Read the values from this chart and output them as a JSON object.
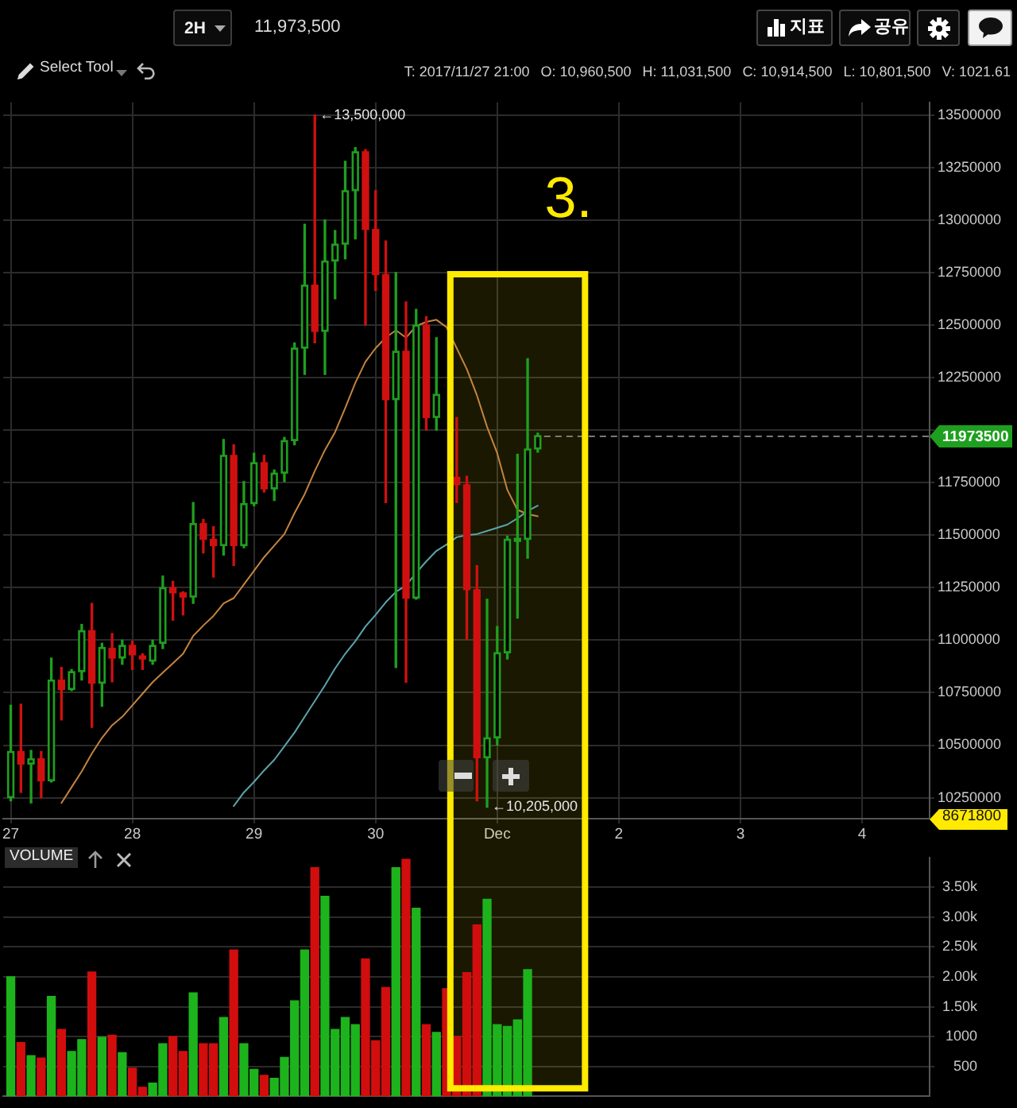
{
  "chart_data": [
    {
      "type": "candlestick",
      "x": [
        "2017-11-27T00:00",
        "2017-11-27T02:00",
        "2017-11-27T04:00",
        "2017-11-27T06:00",
        "2017-11-27T08:00",
        "2017-11-27T10:00",
        "2017-11-27T12:00",
        "2017-11-27T14:00",
        "2017-11-27T16:00",
        "2017-11-27T18:00",
        "2017-11-27T20:00",
        "2017-11-27T22:00",
        "2017-11-28T00:00",
        "2017-11-28T02:00",
        "2017-11-28T04:00",
        "2017-11-28T06:00",
        "2017-11-28T08:00",
        "2017-11-28T10:00",
        "2017-11-28T12:00",
        "2017-11-28T14:00",
        "2017-11-28T16:00",
        "2017-11-28T18:00",
        "2017-11-28T20:00",
        "2017-11-28T22:00",
        "2017-11-29T00:00",
        "2017-11-29T02:00",
        "2017-11-29T04:00",
        "2017-11-29T06:00",
        "2017-11-29T08:00",
        "2017-11-29T10:00",
        "2017-11-29T12:00",
        "2017-11-29T14:00",
        "2017-11-29T16:00",
        "2017-11-29T18:00",
        "2017-11-29T20:00",
        "2017-11-29T22:00",
        "2017-11-30T00:00",
        "2017-11-30T02:00",
        "2017-11-30T04:00",
        "2017-11-30T06:00",
        "2017-11-30T08:00",
        "2017-11-30T10:00",
        "2017-11-30T12:00",
        "2017-11-30T14:00",
        "2017-11-30T16:00",
        "2017-11-30T18:00",
        "2017-11-30T20:00",
        "2017-11-30T22:00",
        "2017-12-01T00:00",
        "2017-12-01T02:00",
        "2017-12-01T04:00",
        "2017-12-01T06:00",
        "2017-12-01T08:00"
      ],
      "ohlc": [
        [
          10250000,
          10690000,
          10235000,
          10470000
        ],
        [
          10470000,
          10695000,
          10275000,
          10410000
        ],
        [
          10410000,
          10475000,
          10225000,
          10435000
        ],
        [
          10435000,
          10470000,
          10250000,
          10330000
        ],
        [
          10330000,
          10915000,
          10325000,
          10810000
        ],
        [
          10810000,
          10870000,
          10620000,
          10765000
        ],
        [
          10765000,
          10860000,
          10760000,
          10850000
        ],
        [
          10850000,
          11075000,
          10810000,
          11045000
        ],
        [
          11045000,
          11175000,
          10585000,
          10795000
        ],
        [
          10795000,
          10985000,
          10685000,
          10965000
        ],
        [
          10960500,
          11031500,
          10801500,
          10914500
        ],
        [
          10915000,
          11000000,
          10885000,
          10975000
        ],
        [
          10975000,
          10995000,
          10860000,
          10930000
        ],
        [
          10925000,
          10935000,
          10860000,
          10910000
        ],
        [
          10900000,
          11000000,
          10885000,
          10975000
        ],
        [
          10985000,
          11305000,
          10960000,
          11250000
        ],
        [
          11250000,
          11280000,
          11095000,
          11225000
        ],
        [
          11225000,
          11230000,
          11120000,
          11205000
        ],
        [
          11205000,
          11655000,
          11175000,
          11555000
        ],
        [
          11555000,
          11575000,
          11415000,
          11480000
        ],
        [
          11480000,
          11540000,
          11300000,
          11450000
        ],
        [
          11450000,
          11955000,
          11405000,
          11880000
        ],
        [
          11880000,
          11930000,
          11355000,
          11450000
        ],
        [
          11450000,
          11755000,
          11440000,
          11650000
        ],
        [
          11650000,
          11890000,
          11640000,
          11845000
        ],
        [
          11845000,
          11880000,
          11705000,
          11720000
        ],
        [
          11720000,
          11810000,
          11665000,
          11795000
        ],
        [
          11795000,
          11965000,
          11755000,
          11950000
        ],
        [
          11950000,
          12415000,
          11930000,
          12390000
        ],
        [
          12390000,
          12980000,
          12265000,
          12690000
        ],
        [
          12690000,
          13500000,
          12415000,
          12470000
        ],
        [
          12470000,
          13000000,
          12265000,
          12805000
        ],
        [
          12805000,
          12950000,
          12625000,
          12885000
        ],
        [
          12885000,
          13280000,
          12815000,
          13140000
        ],
        [
          13140000,
          13345000,
          12910000,
          13325000
        ],
        [
          13325000,
          13335000,
          12500000,
          12955000
        ],
        [
          12955000,
          13140000,
          12665000,
          12740000
        ],
        [
          12740000,
          12900000,
          11655000,
          12145000
        ],
        [
          12145000,
          12750000,
          10870000,
          12375000
        ],
        [
          12375000,
          12610000,
          10800000,
          11200000
        ],
        [
          11200000,
          12575000,
          11195000,
          12500000
        ],
        [
          12500000,
          12540000,
          12000000,
          12060000
        ],
        [
          12060000,
          12440000,
          12000000,
          12170000
        ],
        null,
        [
          11775000,
          12060000,
          11655000,
          11740000
        ],
        [
          11740000,
          11780000,
          11005000,
          11240000
        ],
        [
          11240000,
          11355000,
          10235000,
          10440000
        ],
        [
          10440000,
          11195000,
          10205000,
          10535000
        ],
        [
          10535000,
          11065000,
          10500000,
          10940000
        ],
        [
          10940000,
          11495000,
          10910000,
          11480000
        ],
        [
          11470000,
          11885000,
          11105000,
          11485000
        ],
        [
          11480000,
          12340000,
          11390000,
          11910000
        ],
        [
          11910000,
          11985000,
          11895000,
          11973500
        ]
      ],
      "colors": [
        "#1f9f1f",
        "#d01010",
        "#1f9f1f",
        "#d01010",
        "#1f9f1f",
        "#d01010",
        "#1f9f1f",
        "#1f9f1f",
        "#d01010",
        "#1f9f1f",
        "#d01010",
        "#1f9f1f",
        "#d01010",
        "#d01010",
        "#1f9f1f",
        "#1f9f1f",
        "#d01010",
        "#d01010",
        "#1f9f1f",
        "#d01010",
        "#d01010",
        "#1f9f1f",
        "#d01010",
        "#1f9f1f",
        "#1f9f1f",
        "#d01010",
        "#1f9f1f",
        "#1f9f1f",
        "#1f9f1f",
        "#1f9f1f",
        "#d01010",
        "#1f9f1f",
        "#1f9f1f",
        "#1f9f1f",
        "#1f9f1f",
        "#d01010",
        "#d01010",
        "#d01010",
        "#1f9f1f",
        "#d01010",
        "#1f9f1f",
        "#d01010",
        "#1f9f1f",
        null,
        "#d01010",
        "#d01010",
        "#d01010",
        "#1f9f1f",
        "#1f9f1f",
        "#1f9f1f",
        "#1f9f1f",
        "#1f9f1f",
        "#1f9f1f"
      ],
      "series": [
        {
          "type": "line",
          "color": "#c4843f",
          "values": [
            null,
            null,
            null,
            null,
            null,
            10225000,
            10300000,
            10375000,
            10460000,
            10535000,
            10595000,
            10635000,
            10690000,
            10745000,
            10800000,
            10845000,
            10890000,
            10935000,
            11020000,
            11070000,
            11115000,
            11175000,
            11200000,
            11265000,
            11330000,
            11395000,
            11450000,
            11505000,
            11605000,
            11695000,
            11805000,
            11905000,
            11990000,
            12105000,
            12225000,
            12325000,
            12390000,
            12440000,
            12475000,
            12440000,
            12495000,
            12515000,
            12525000,
            12490000,
            12390000,
            12290000,
            12165000,
            12015000,
            11890000,
            11715000,
            11620000,
            11600000,
            11590000
          ]
        },
        {
          "type": "line",
          "color": "#5ba4ac",
          "values": [
            null,
            null,
            null,
            null,
            null,
            null,
            null,
            null,
            null,
            null,
            null,
            null,
            null,
            null,
            null,
            null,
            null,
            null,
            null,
            null,
            null,
            null,
            10210000,
            10275000,
            10325000,
            10380000,
            10430000,
            10495000,
            10560000,
            10635000,
            10710000,
            10785000,
            10865000,
            10935000,
            10995000,
            11065000,
            11120000,
            11180000,
            11230000,
            11260000,
            11320000,
            11375000,
            11425000,
            11455000,
            11490000,
            11500000,
            11505000,
            11520000,
            11535000,
            11550000,
            11580000,
            11615000,
            11640000
          ]
        }
      ],
      "xlim": [
        "2017-11-26T22:30",
        "2017-12-04T13:20"
      ],
      "xticks": [
        {
          "value": "2017-11-27",
          "label": "27"
        },
        {
          "value": "2017-11-28",
          "label": "28"
        },
        {
          "value": "2017-11-29",
          "label": "29"
        },
        {
          "value": "2017-11-30",
          "label": "30"
        },
        {
          "value": "2017-12-01",
          "label": "Dec"
        },
        {
          "value": "2017-12-02",
          "label": "2"
        },
        {
          "value": "2017-12-03",
          "label": "3"
        },
        {
          "value": "2017-12-04",
          "label": "4"
        }
      ],
      "ylim": [
        10150000,
        13560000
      ],
      "yticks": [
        10250000,
        10500000,
        10750000,
        11000000,
        11250000,
        11500000,
        11750000,
        {
          "value": 12000000,
          "label": null
        },
        12250000,
        12500000,
        12750000,
        13000000,
        13250000,
        13500000
      ],
      "grid": true,
      "ref_lines": [
        {
          "axis": "y",
          "value": 11973500,
          "label": "11973500",
          "color": "#7a7a7a",
          "line_style": "dashed"
        }
      ],
      "bands": [
        {
          "axis": "x",
          "from": "2017-11-30T14:45",
          "to": "2017-12-01T17:20",
          "label": "3.",
          "color": "#ffea00"
        }
      ],
      "annotations": [
        "2H",
        "11,973,500",
        "지표",
        "공유",
        "Select Tool",
        "T: 2017/11/27 21:00",
        "O: 10,960,500",
        "H: 11,031,500",
        "C: 10,914,500",
        "L: 10,801,500",
        "V: 1021.61",
        "8671800",
        {
          "text": "←13,500,000",
          "x": "2017-11-29T12:00",
          "y": 13500000
        },
        {
          "text": "←10,205,000",
          "x": "2017-11-30T22:00",
          "y": 10205000
        }
      ]
    },
    {
      "type": "bar",
      "title": "VOLUME",
      "x": [
        "2017-11-27T00:00",
        "2017-11-27T02:00",
        "2017-11-27T04:00",
        "2017-11-27T06:00",
        "2017-11-27T08:00",
        "2017-11-27T10:00",
        "2017-11-27T12:00",
        "2017-11-27T14:00",
        "2017-11-27T16:00",
        "2017-11-27T18:00",
        "2017-11-27T20:00",
        "2017-11-27T22:00",
        "2017-11-28T00:00",
        "2017-11-28T02:00",
        "2017-11-28T04:00",
        "2017-11-28T06:00",
        "2017-11-28T08:00",
        "2017-11-28T10:00",
        "2017-11-28T12:00",
        "2017-11-28T14:00",
        "2017-11-28T16:00",
        "2017-11-28T18:00",
        "2017-11-28T20:00",
        "2017-11-28T22:00",
        "2017-11-29T00:00",
        "2017-11-29T02:00",
        "2017-11-29T04:00",
        "2017-11-29T06:00",
        "2017-11-29T08:00",
        "2017-11-29T10:00",
        "2017-11-29T12:00",
        "2017-11-29T14:00",
        "2017-11-29T16:00",
        "2017-11-29T18:00",
        "2017-11-29T20:00",
        "2017-11-29T22:00",
        "2017-11-30T00:00",
        "2017-11-30T02:00",
        "2017-11-30T04:00",
        "2017-11-30T06:00",
        "2017-11-30T08:00",
        "2017-11-30T10:00",
        "2017-11-30T12:00",
        "2017-11-30T14:00",
        "2017-11-30T16:00",
        "2017-11-30T18:00",
        "2017-11-30T20:00",
        "2017-11-30T22:00",
        "2017-12-01T00:00",
        "2017-12-01T02:00",
        "2017-12-01T04:00",
        "2017-12-01T06:00"
      ],
      "values": [
        2000,
        900,
        680,
        640,
        1670,
        1120,
        750,
        950,
        2080,
        990,
        1021.61,
        730,
        470,
        150,
        220,
        880,
        1000,
        750,
        1730,
        880,
        880,
        1320,
        2450,
        880,
        450,
        350,
        300,
        650,
        1600,
        2450,
        3830,
        3350,
        1120,
        1320,
        1200,
        2300,
        930,
        1820,
        3830,
        3970,
        3150,
        1200,
        1070,
        1800,
        1000,
        2070,
        2870,
        3300,
        1200,
        1170,
        1280,
        2120
      ],
      "colors": [
        "#1db31d",
        "#d20d0d",
        "#1db31d",
        "#d20d0d",
        "#1db31d",
        "#d20d0d",
        "#1db31d",
        "#1db31d",
        "#d20d0d",
        "#1db31d",
        "#d20d0d",
        "#1db31d",
        "#d20d0d",
        "#d20d0d",
        "#1db31d",
        "#1db31d",
        "#d20d0d",
        "#d20d0d",
        "#1db31d",
        "#d20d0d",
        "#d20d0d",
        "#1db31d",
        "#d20d0d",
        "#1db31d",
        "#1db31d",
        "#d20d0d",
        "#1db31d",
        "#1db31d",
        "#1db31d",
        "#1db31d",
        "#d20d0d",
        "#1db31d",
        "#1db31d",
        "#1db31d",
        "#1db31d",
        "#d20d0d",
        "#d20d0d",
        "#d20d0d",
        "#1db31d",
        "#d20d0d",
        "#1db31d",
        "#d20d0d",
        "#1db31d",
        "#d20d0d",
        "#d20d0d",
        "#d20d0d",
        "#d20d0d",
        "#1db31d",
        "#1db31d",
        "#1db31d",
        "#1db31d",
        "#1db31d"
      ],
      "xlim": [
        "2017-11-26T22:30",
        "2017-12-04T13:20"
      ],
      "ylim": [
        0,
        4000
      ],
      "yticks": [
        500,
        1000,
        {
          "value": 1500,
          "label": "1.50k"
        },
        {
          "value": 2000,
          "label": "2.00k"
        },
        {
          "value": 2500,
          "label": "2.50k"
        },
        {
          "value": 3000,
          "label": "3.00k"
        },
        {
          "value": 3500,
          "label": "3.50k"
        }
      ],
      "bands": [
        {
          "axis": "x",
          "from": "2017-11-30T14:45",
          "to": "2017-12-01T17:20",
          "color": "#ffea00"
        }
      ],
      "grid": "y",
      "tick_labels": "y"
    }
  ]
}
